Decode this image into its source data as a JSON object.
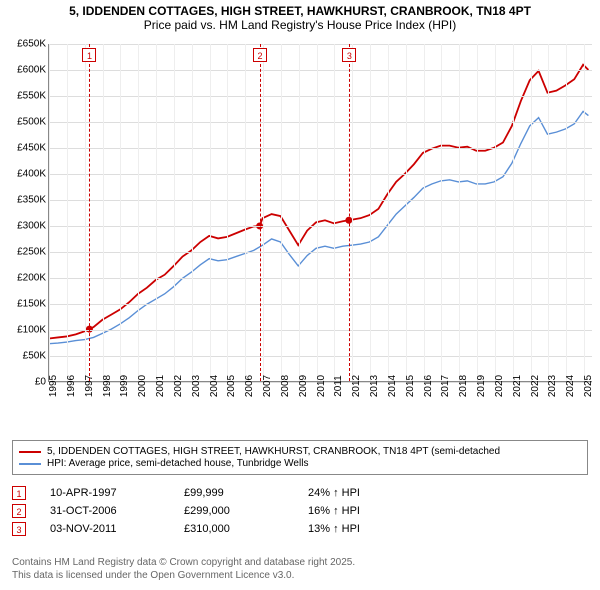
{
  "title": {
    "line1": "5, IDDENDEN COTTAGES, HIGH STREET, HAWKHURST, CRANBROOK, TN18 4PT",
    "line2": "Price paid vs. HM Land Registry's House Price Index (HPI)"
  },
  "chart": {
    "type": "line",
    "background_color": "#ffffff",
    "grid_color": "#dddddd",
    "grid_color_v": "#eeeeee",
    "axis_color": "#888888",
    "x": {
      "min": 1995,
      "max": 2025.5,
      "ticks": [
        1995,
        1996,
        1997,
        1998,
        1999,
        2000,
        2001,
        2002,
        2003,
        2004,
        2005,
        2006,
        2007,
        2008,
        2009,
        2010,
        2011,
        2012,
        2013,
        2014,
        2015,
        2016,
        2017,
        2018,
        2019,
        2020,
        2021,
        2022,
        2023,
        2024,
        2025
      ],
      "tick_labels": [
        "1995",
        "1996",
        "1997",
        "1998",
        "1999",
        "2000",
        "2001",
        "2002",
        "2003",
        "2004",
        "2005",
        "2006",
        "2007",
        "2008",
        "2009",
        "2010",
        "2011",
        "2012",
        "2013",
        "2014",
        "2015",
        "2016",
        "2017",
        "2018",
        "2019",
        "2020",
        "2021",
        "2022",
        "2023",
        "2024",
        "2025"
      ],
      "tick_fontsize": 10
    },
    "y": {
      "min": 0,
      "max": 650000,
      "ticks": [
        0,
        50000,
        100000,
        150000,
        200000,
        250000,
        300000,
        350000,
        400000,
        450000,
        500000,
        550000,
        600000,
        650000
      ],
      "tick_labels": [
        "£0",
        "£50K",
        "£100K",
        "£150K",
        "£200K",
        "£250K",
        "£300K",
        "£350K",
        "£400K",
        "£450K",
        "£500K",
        "£550K",
        "£600K",
        "£650K"
      ],
      "tick_fontsize": 10
    },
    "series": [
      {
        "id": "property",
        "label": "5, IDDENDEN COTTAGES, HIGH STREET, HAWKHURST, CRANBROOK, TN18 4PT (semi-detached",
        "color": "#cc0000",
        "line_width": 1.8,
        "x": [
          1995.0,
          1995.5,
          1996.0,
          1996.5,
          1997.0,
          1997.27,
          1997.5,
          1998.0,
          1998.5,
          1999.0,
          1999.5,
          2000.0,
          2000.5,
          2001.0,
          2001.5,
          2002.0,
          2002.5,
          2003.0,
          2003.5,
          2004.0,
          2004.5,
          2005.0,
          2005.5,
          2006.0,
          2006.5,
          2006.83,
          2007.0,
          2007.5,
          2008.0,
          2008.5,
          2009.0,
          2009.5,
          2010.0,
          2010.5,
          2011.0,
          2011.5,
          2011.84,
          2012.0,
          2012.5,
          2013.0,
          2013.5,
          2014.0,
          2014.5,
          2015.0,
          2015.5,
          2016.0,
          2016.5,
          2017.0,
          2017.5,
          2018.0,
          2018.5,
          2019.0,
          2019.5,
          2020.0,
          2020.5,
          2021.0,
          2021.5,
          2022.0,
          2022.5,
          2023.0,
          2023.5,
          2024.0,
          2024.5,
          2025.0,
          2025.3
        ],
        "y": [
          82000,
          84000,
          86000,
          90000,
          96000,
          99999,
          104000,
          118000,
          128000,
          138000,
          152000,
          168000,
          180000,
          195000,
          205000,
          222000,
          240000,
          252000,
          268000,
          280000,
          275000,
          278000,
          285000,
          292000,
          298000,
          299000,
          314000,
          322000,
          318000,
          290000,
          262000,
          290000,
          306000,
          310000,
          304000,
          308000,
          310000,
          311000,
          314000,
          320000,
          332000,
          360000,
          384000,
          400000,
          418000,
          440000,
          448000,
          454000,
          454000,
          450000,
          452000,
          444000,
          444000,
          450000,
          460000,
          492000,
          540000,
          580000,
          598000,
          556000,
          560000,
          570000,
          582000,
          610000,
          600000
        ]
      },
      {
        "id": "hpi",
        "label": "HPI: Average price, semi-detached house, Tunbridge Wells",
        "color": "#5a8fd6",
        "line_width": 1.4,
        "x": [
          1995.0,
          1995.5,
          1996.0,
          1996.5,
          1997.0,
          1997.5,
          1998.0,
          1998.5,
          1999.0,
          1999.5,
          2000.0,
          2000.5,
          2001.0,
          2001.5,
          2002.0,
          2002.5,
          2003.0,
          2003.5,
          2004.0,
          2004.5,
          2005.0,
          2005.5,
          2006.0,
          2006.5,
          2007.0,
          2007.5,
          2008.0,
          2008.5,
          2009.0,
          2009.5,
          2010.0,
          2010.5,
          2011.0,
          2011.5,
          2012.0,
          2012.5,
          2013.0,
          2013.5,
          2014.0,
          2014.5,
          2015.0,
          2015.5,
          2016.0,
          2016.5,
          2017.0,
          2017.5,
          2018.0,
          2018.5,
          2019.0,
          2019.5,
          2020.0,
          2020.5,
          2021.0,
          2021.5,
          2022.0,
          2022.5,
          2023.0,
          2023.5,
          2024.0,
          2024.5,
          2025.0,
          2025.3
        ],
        "y": [
          72000,
          73000,
          75000,
          78000,
          80000,
          84000,
          92000,
          100000,
          110000,
          122000,
          136000,
          148000,
          158000,
          168000,
          182000,
          198000,
          210000,
          224000,
          236000,
          232000,
          234000,
          240000,
          246000,
          252000,
          262000,
          274000,
          268000,
          244000,
          222000,
          242000,
          256000,
          260000,
          256000,
          260000,
          262000,
          264000,
          268000,
          278000,
          300000,
          322000,
          338000,
          354000,
          372000,
          380000,
          386000,
          388000,
          384000,
          386000,
          380000,
          380000,
          384000,
          394000,
          420000,
          458000,
          492000,
          508000,
          476000,
          480000,
          486000,
          496000,
          520000,
          512000
        ]
      }
    ],
    "sale_markers": [
      {
        "n": "1",
        "x": 1997.27,
        "y": 99999,
        "color": "#cc0000"
      },
      {
        "n": "2",
        "x": 2006.83,
        "y": 299000,
        "color": "#cc0000"
      },
      {
        "n": "3",
        "x": 2011.84,
        "y": 310000,
        "color": "#cc0000"
      }
    ],
    "dot_radius": 3.5
  },
  "legend": {
    "border_color": "#888888",
    "fontsize": 10,
    "items": [
      {
        "color": "#cc0000",
        "label": "5, IDDENDEN COTTAGES, HIGH STREET, HAWKHURST, CRANBROOK, TN18 4PT (semi-detached"
      },
      {
        "color": "#5a8fd6",
        "label": "HPI: Average price, semi-detached house, Tunbridge Wells"
      }
    ]
  },
  "sales": [
    {
      "n": "1",
      "color": "#cc0000",
      "date": "10-APR-1997",
      "price": "£99,999",
      "delta": "24% ↑ HPI"
    },
    {
      "n": "2",
      "color": "#cc0000",
      "date": "31-OCT-2006",
      "price": "£299,000",
      "delta": "16% ↑ HPI"
    },
    {
      "n": "3",
      "color": "#cc0000",
      "date": "03-NOV-2011",
      "price": "£310,000",
      "delta": "13% ↑ HPI"
    }
  ],
  "copyright": {
    "line1": "Contains HM Land Registry data © Crown copyright and database right 2025.",
    "line2": "This data is licensed under the Open Government Licence v3.0.",
    "color": "#666666"
  }
}
